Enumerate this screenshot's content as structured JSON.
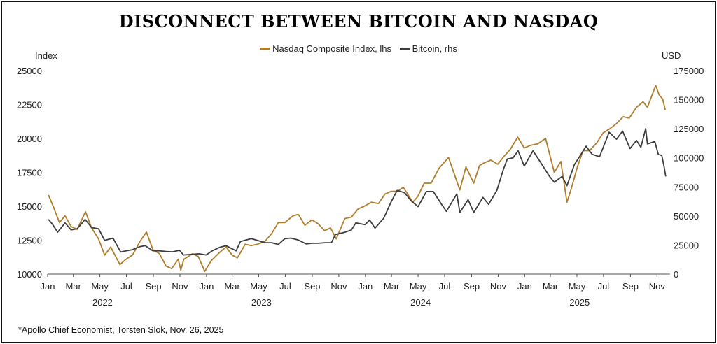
{
  "title": "DISCONNECT BETWEEN BITCOIN AND NASDAQ",
  "footnote": "*Apollo Chief Economist, Torsten Slok, Nov. 26, 2025",
  "chart_data": {
    "type": "line",
    "title": "DISCONNECT BETWEEN BITCOIN AND NASDAQ",
    "left_axis_label": "Index",
    "right_axis_label": "USD",
    "left_ylim": [
      10000,
      25000
    ],
    "right_ylim": [
      0,
      175000
    ],
    "left_ticks": [
      "25000",
      "22500",
      "20000",
      "17500",
      "15000",
      "12500",
      "10000"
    ],
    "right_ticks": [
      "175000",
      "150000",
      "125000",
      "100000",
      "75000",
      "50000",
      "25000",
      "0"
    ],
    "x_month_labels": [
      "Jan",
      "Mar",
      "May",
      "Jul",
      "Sep",
      "Nov",
      "Jan",
      "Mar",
      "May",
      "Jul",
      "Sep",
      "Nov",
      "Jan",
      "Mar",
      "May",
      "Jul",
      "Sep",
      "Nov",
      "Jan",
      "Mar",
      "May",
      "Jul",
      "Sep",
      "Nov"
    ],
    "x_year_labels": [
      "2022",
      "2023",
      "2024",
      "2025"
    ],
    "x_range": [
      "2022-01-01",
      "2025-12-01"
    ],
    "grid": false,
    "legend_position": "top-center",
    "series": [
      {
        "name": "Nasdaq Composite Index, lhs",
        "axis": "left",
        "color": "#b07d2c",
        "points": [
          [
            "2022-01-03",
            15830
          ],
          [
            "2022-01-15",
            14900
          ],
          [
            "2022-01-28",
            13800
          ],
          [
            "2022-02-10",
            14300
          ],
          [
            "2022-02-24",
            13500
          ],
          [
            "2022-03-10",
            13300
          ],
          [
            "2022-03-29",
            14600
          ],
          [
            "2022-04-12",
            13400
          ],
          [
            "2022-04-28",
            12600
          ],
          [
            "2022-05-12",
            11400
          ],
          [
            "2022-05-26",
            12000
          ],
          [
            "2022-06-16",
            10700
          ],
          [
            "2022-06-30",
            11100
          ],
          [
            "2022-07-15",
            11400
          ],
          [
            "2022-08-01",
            12400
          ],
          [
            "2022-08-16",
            13100
          ],
          [
            "2022-08-31",
            11800
          ],
          [
            "2022-09-15",
            11500
          ],
          [
            "2022-09-30",
            10600
          ],
          [
            "2022-10-13",
            10400
          ],
          [
            "2022-10-28",
            11100
          ],
          [
            "2022-11-03",
            10300
          ],
          [
            "2022-11-10",
            11100
          ],
          [
            "2022-11-30",
            11500
          ],
          [
            "2022-12-13",
            11300
          ],
          [
            "2022-12-28",
            10200
          ],
          [
            "2023-01-12",
            11000
          ],
          [
            "2023-01-31",
            11600
          ],
          [
            "2023-02-15",
            12000
          ],
          [
            "2023-03-01",
            11400
          ],
          [
            "2023-03-13",
            11200
          ],
          [
            "2023-03-31",
            12200
          ],
          [
            "2023-04-14",
            12100
          ],
          [
            "2023-04-28",
            12200
          ],
          [
            "2023-05-15",
            12400
          ],
          [
            "2023-05-31",
            13000
          ],
          [
            "2023-06-15",
            13800
          ],
          [
            "2023-06-30",
            13800
          ],
          [
            "2023-07-19",
            14300
          ],
          [
            "2023-07-31",
            14400
          ],
          [
            "2023-08-15",
            13600
          ],
          [
            "2023-08-31",
            14000
          ],
          [
            "2023-09-15",
            13700
          ],
          [
            "2023-09-29",
            13200
          ],
          [
            "2023-10-13",
            13400
          ],
          [
            "2023-10-26",
            12600
          ],
          [
            "2023-11-15",
            14100
          ],
          [
            "2023-11-30",
            14200
          ],
          [
            "2023-12-15",
            14800
          ],
          [
            "2023-12-29",
            15000
          ],
          [
            "2024-01-15",
            15300
          ],
          [
            "2024-01-31",
            15200
          ],
          [
            "2024-02-15",
            15900
          ],
          [
            "2024-02-29",
            16100
          ],
          [
            "2024-03-15",
            16100
          ],
          [
            "2024-03-28",
            16400
          ],
          [
            "2024-04-19",
            15300
          ],
          [
            "2024-04-30",
            15700
          ],
          [
            "2024-05-15",
            16700
          ],
          [
            "2024-05-31",
            16700
          ],
          [
            "2024-06-18",
            17800
          ],
          [
            "2024-07-10",
            18600
          ],
          [
            "2024-07-24",
            17300
          ],
          [
            "2024-08-05",
            16200
          ],
          [
            "2024-08-19",
            17900
          ],
          [
            "2024-09-06",
            16700
          ],
          [
            "2024-09-19",
            18000
          ],
          [
            "2024-09-30",
            18200
          ],
          [
            "2024-10-15",
            18400
          ],
          [
            "2024-10-31",
            18100
          ],
          [
            "2024-11-15",
            18700
          ],
          [
            "2024-11-29",
            19200
          ],
          [
            "2024-12-16",
            20100
          ],
          [
            "2024-12-31",
            19300
          ],
          [
            "2025-01-15",
            19500
          ],
          [
            "2025-01-31",
            19600
          ],
          [
            "2025-02-18",
            20000
          ],
          [
            "2025-03-10",
            17500
          ],
          [
            "2025-03-25",
            18300
          ],
          [
            "2025-04-08",
            15300
          ],
          [
            "2025-04-18",
            16300
          ],
          [
            "2025-05-02",
            17900
          ],
          [
            "2025-05-15",
            19100
          ],
          [
            "2025-05-30",
            19100
          ],
          [
            "2025-06-16",
            19700
          ],
          [
            "2025-06-30",
            20400
          ],
          [
            "2025-07-15",
            20700
          ],
          [
            "2025-07-31",
            21100
          ],
          [
            "2025-08-15",
            21600
          ],
          [
            "2025-08-29",
            21500
          ],
          [
            "2025-09-15",
            22300
          ],
          [
            "2025-09-30",
            22700
          ],
          [
            "2025-10-10",
            22300
          ],
          [
            "2025-10-29",
            23900
          ],
          [
            "2025-11-06",
            23200
          ],
          [
            "2025-11-14",
            22900
          ],
          [
            "2025-11-20",
            22100
          ]
        ]
      },
      {
        "name": "Bitcoin, rhs",
        "axis": "right",
        "color": "#3d3d3d",
        "points": [
          [
            "2022-01-03",
            47000
          ],
          [
            "2022-01-12",
            43000
          ],
          [
            "2022-01-24",
            36000
          ],
          [
            "2022-02-10",
            44000
          ],
          [
            "2022-02-24",
            38000
          ],
          [
            "2022-03-10",
            39000
          ],
          [
            "2022-03-28",
            47000
          ],
          [
            "2022-04-12",
            40000
          ],
          [
            "2022-04-28",
            39000
          ],
          [
            "2022-05-12",
            29000
          ],
          [
            "2022-05-31",
            31000
          ],
          [
            "2022-06-18",
            19000
          ],
          [
            "2022-06-30",
            20000
          ],
          [
            "2022-07-15",
            21000
          ],
          [
            "2022-07-31",
            23500
          ],
          [
            "2022-08-13",
            24500
          ],
          [
            "2022-08-31",
            20000
          ],
          [
            "2022-09-15",
            20000
          ],
          [
            "2022-09-30",
            19500
          ],
          [
            "2022-10-15",
            19200
          ],
          [
            "2022-10-31",
            20500
          ],
          [
            "2022-11-09",
            16500
          ],
          [
            "2022-11-30",
            17000
          ],
          [
            "2022-12-15",
            17500
          ],
          [
            "2022-12-31",
            16500
          ],
          [
            "2023-01-14",
            20000
          ],
          [
            "2023-01-31",
            23000
          ],
          [
            "2023-02-15",
            24500
          ],
          [
            "2023-03-10",
            20000
          ],
          [
            "2023-03-20",
            28000
          ],
          [
            "2023-04-14",
            30500
          ],
          [
            "2023-04-28",
            29000
          ],
          [
            "2023-05-15",
            27000
          ],
          [
            "2023-05-31",
            27000
          ],
          [
            "2023-06-15",
            25500
          ],
          [
            "2023-06-30",
            30500
          ],
          [
            "2023-07-14",
            31000
          ],
          [
            "2023-07-31",
            29300
          ],
          [
            "2023-08-18",
            26000
          ],
          [
            "2023-08-31",
            26500
          ],
          [
            "2023-09-15",
            26500
          ],
          [
            "2023-09-30",
            27000
          ],
          [
            "2023-10-15",
            27000
          ],
          [
            "2023-10-24",
            34000
          ],
          [
            "2023-11-15",
            36000
          ],
          [
            "2023-11-30",
            38000
          ],
          [
            "2023-12-10",
            44000
          ],
          [
            "2023-12-31",
            42500
          ],
          [
            "2024-01-11",
            46500
          ],
          [
            "2024-01-23",
            39500
          ],
          [
            "2024-02-12",
            48000
          ],
          [
            "2024-02-29",
            62000
          ],
          [
            "2024-03-14",
            72000
          ],
          [
            "2024-03-31",
            70000
          ],
          [
            "2024-04-15",
            63000
          ],
          [
            "2024-05-01",
            58000
          ],
          [
            "2024-05-20",
            71000
          ],
          [
            "2024-06-05",
            71000
          ],
          [
            "2024-06-24",
            60000
          ],
          [
            "2024-07-05",
            54000
          ],
          [
            "2024-07-29",
            69000
          ],
          [
            "2024-08-05",
            53000
          ],
          [
            "2024-08-24",
            64000
          ],
          [
            "2024-09-06",
            53000
          ],
          [
            "2024-09-27",
            66000
          ],
          [
            "2024-10-10",
            60000
          ],
          [
            "2024-10-29",
            72000
          ],
          [
            "2024-11-13",
            90000
          ],
          [
            "2024-11-22",
            99000
          ],
          [
            "2024-12-05",
            100000
          ],
          [
            "2024-12-17",
            106000
          ],
          [
            "2024-12-31",
            93000
          ],
          [
            "2025-01-20",
            106000
          ],
          [
            "2025-02-05",
            97000
          ],
          [
            "2025-02-27",
            84000
          ],
          [
            "2025-03-10",
            79000
          ],
          [
            "2025-03-28",
            84000
          ],
          [
            "2025-04-08",
            76000
          ],
          [
            "2025-04-25",
            94000
          ],
          [
            "2025-05-12",
            104000
          ],
          [
            "2025-05-22",
            110000
          ],
          [
            "2025-06-05",
            103000
          ],
          [
            "2025-06-22",
            101000
          ],
          [
            "2025-07-14",
            122000
          ],
          [
            "2025-07-31",
            116000
          ],
          [
            "2025-08-14",
            123000
          ],
          [
            "2025-08-31",
            108000
          ],
          [
            "2025-09-15",
            115000
          ],
          [
            "2025-09-25",
            109000
          ],
          [
            "2025-10-06",
            125000
          ],
          [
            "2025-10-10",
            112000
          ],
          [
            "2025-10-27",
            114000
          ],
          [
            "2025-11-04",
            103000
          ],
          [
            "2025-11-12",
            102000
          ],
          [
            "2025-11-17",
            93000
          ],
          [
            "2025-11-21",
            84000
          ]
        ]
      }
    ]
  }
}
